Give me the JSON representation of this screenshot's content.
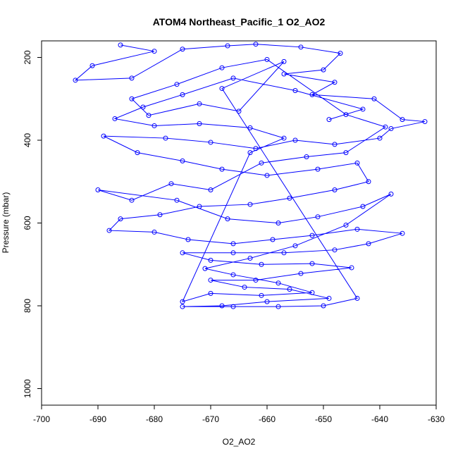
{
  "chart_data": {
    "type": "scatter",
    "title": "ATOM4 Northeast_Pacific_1 O2_AO2",
    "xlabel": "O2_AO2",
    "ylabel": "Pressure (mbar)",
    "xlim": [
      -700,
      -630
    ],
    "ylim": [
      1040,
      160
    ],
    "y_reversed": true,
    "x_ticks": [
      -700,
      -690,
      -680,
      -670,
      -660,
      -650,
      -640,
      -630
    ],
    "y_ticks": [
      200,
      400,
      600,
      800,
      1000
    ],
    "x_tick_labels": [
      "-700",
      "-690",
      "-680",
      "-670",
      "-660",
      "-650",
      "-640",
      "-630"
    ],
    "y_tick_labels": [
      "200",
      "400",
      "600",
      "800",
      "1000"
    ],
    "grid": false,
    "series": [
      {
        "color": "#0000ff",
        "marker": "open-circle",
        "connected_by_lines": true,
        "points": [
          [
            -686,
            170
          ],
          [
            -680,
            185
          ],
          [
            -691,
            220
          ],
          [
            -694,
            255
          ],
          [
            -684,
            250
          ],
          [
            -675,
            180
          ],
          [
            -667,
            172
          ],
          [
            -662,
            168
          ],
          [
            -654,
            175
          ],
          [
            -647,
            190
          ],
          [
            -650,
            230
          ],
          [
            -657,
            240
          ],
          [
            -648,
            260
          ],
          [
            -652,
            290
          ],
          [
            -641,
            300
          ],
          [
            -636,
            350
          ],
          [
            -632,
            355
          ],
          [
            -638,
            372
          ],
          [
            -640,
            395
          ],
          [
            -648,
            410
          ],
          [
            -655,
            400
          ],
          [
            -662,
            420
          ],
          [
            -670,
            405
          ],
          [
            -678,
            395
          ],
          [
            -689,
            390
          ],
          [
            -683,
            430
          ],
          [
            -675,
            450
          ],
          [
            -668,
            470
          ],
          [
            -660,
            485
          ],
          [
            -651,
            470
          ],
          [
            -644,
            455
          ],
          [
            -642,
            500
          ],
          [
            -648,
            520
          ],
          [
            -656,
            540
          ],
          [
            -663,
            555
          ],
          [
            -672,
            560
          ],
          [
            -679,
            580
          ],
          [
            -686,
            590
          ],
          [
            -688,
            618
          ],
          [
            -680,
            622
          ],
          [
            -674,
            640
          ],
          [
            -666,
            650
          ],
          [
            -659,
            640
          ],
          [
            -652,
            630
          ],
          [
            -644,
            615
          ],
          [
            -636,
            625
          ],
          [
            -642,
            650
          ],
          [
            -648,
            665
          ],
          [
            -657,
            672
          ],
          [
            -666,
            672
          ],
          [
            -675,
            672
          ],
          [
            -670,
            690
          ],
          [
            -661,
            700
          ],
          [
            -652,
            698
          ],
          [
            -645,
            708
          ],
          [
            -654,
            722
          ],
          [
            -662,
            738
          ],
          [
            -670,
            738
          ],
          [
            -664,
            755
          ],
          [
            -656,
            760
          ],
          [
            -649,
            782
          ],
          [
            -660,
            790
          ],
          [
            -668,
            800
          ],
          [
            -675,
            802
          ],
          [
            -666,
            802
          ],
          [
            -658,
            802
          ],
          [
            -650,
            800
          ],
          [
            -644,
            782
          ],
          [
            -668,
            275
          ],
          [
            -657,
            210
          ],
          [
            -665,
            330
          ],
          [
            -672,
            312
          ],
          [
            -681,
            340
          ],
          [
            -684,
            300
          ],
          [
            -676,
            265
          ],
          [
            -668,
            225
          ],
          [
            -660,
            205
          ],
          [
            -646,
            338
          ],
          [
            -639,
            368
          ],
          [
            -646,
            430
          ],
          [
            -653,
            440
          ],
          [
            -661,
            455
          ],
          [
            -670,
            520
          ],
          [
            -677,
            505
          ],
          [
            -684,
            545
          ],
          [
            -690,
            520
          ],
          [
            -676,
            545
          ],
          [
            -667,
            590
          ],
          [
            -658,
            600
          ],
          [
            -651,
            585
          ],
          [
            -643,
            560
          ],
          [
            -638,
            530
          ],
          [
            -646,
            605
          ],
          [
            -655,
            655
          ],
          [
            -663,
            685
          ],
          [
            -671,
            710
          ],
          [
            -666,
            725
          ],
          [
            -658,
            745
          ],
          [
            -652,
            768
          ],
          [
            -661,
            775
          ],
          [
            -670,
            770
          ],
          [
            -675,
            790
          ],
          [
            -663,
            430
          ],
          [
            -657,
            395
          ],
          [
            -663,
            370
          ],
          [
            -672,
            360
          ],
          [
            -680,
            365
          ],
          [
            -687,
            348
          ],
          [
            -682,
            320
          ],
          [
            -675,
            290
          ],
          [
            -666,
            250
          ],
          [
            -655,
            280
          ],
          [
            -643,
            325
          ],
          [
            -649,
            350
          ]
        ]
      }
    ]
  }
}
